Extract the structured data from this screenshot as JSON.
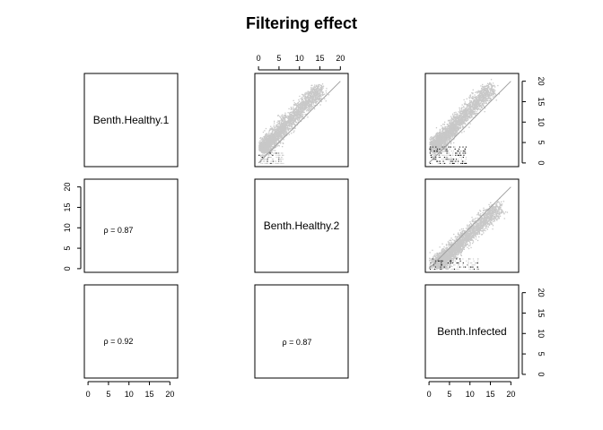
{
  "title": "Filtering effect",
  "chart_data": {
    "type": "scatter",
    "title": "Filtering effect",
    "variables": [
      "Benth.Healthy.1",
      "Benth.Healthy.2",
      "Benth.Infected"
    ],
    "axis_range": [
      0,
      20
    ],
    "ticks": [
      "0",
      "5",
      "10",
      "15",
      "20"
    ],
    "correlations": [
      {
        "row": 2,
        "col": 1,
        "label": "ρ = 0.87",
        "value": 0.87
      },
      {
        "row": 3,
        "col": 1,
        "label": "ρ = 0.92",
        "value": 0.92
      },
      {
        "row": 3,
        "col": 2,
        "label": "ρ = 0.87",
        "value": 0.87
      }
    ],
    "scatter_panels": [
      {
        "row": 1,
        "col": 2,
        "x": "Benth.Healthy.2",
        "y": "Benth.Healthy.1",
        "identity_line": true
      },
      {
        "row": 1,
        "col": 3,
        "x": "Benth.Infected",
        "y": "Benth.Healthy.1",
        "identity_line": true
      },
      {
        "row": 2,
        "col": 3,
        "x": "Benth.Infected",
        "y": "Benth.Healthy.2",
        "identity_line": true
      }
    ],
    "point_color": "#c8c8c8",
    "low_count_color": "#000000",
    "line_color": "#a0a0a0"
  }
}
